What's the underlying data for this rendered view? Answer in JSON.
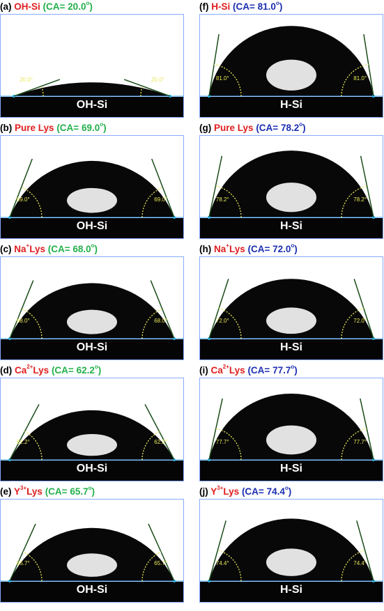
{
  "panels": [
    {
      "letter": "(a)",
      "sample": "OH-Si",
      "sample_sup": "",
      "sample_suffix": "",
      "ca_text": "(CA= 20.0",
      "ca_deg": "o",
      "ca_close": ")",
      "ca_color": "green",
      "angle_label": "20.0°",
      "substrate": "OH-Si",
      "contact_angle_deg": 20.0
    },
    {
      "letter": "(b)",
      "sample": "Pure Lys",
      "sample_sup": "",
      "sample_suffix": "",
      "ca_text": "(CA= 69.0",
      "ca_deg": "o",
      "ca_close": ")",
      "ca_color": "green",
      "angle_label": "69.0°",
      "substrate": "OH-Si",
      "contact_angle_deg": 69.0
    },
    {
      "letter": "(c)",
      "sample": "Na",
      "sample_sup": "+",
      "sample_suffix": "Lys",
      "ca_text": "(CA= 68.0",
      "ca_deg": "o",
      "ca_close": ")",
      "ca_color": "green",
      "angle_label": "68.0°",
      "substrate": "OH-Si",
      "contact_angle_deg": 68.0
    },
    {
      "letter": "(d)",
      "sample": "Ca",
      "sample_sup": "2+",
      "sample_suffix": "Lys",
      "ca_text": "(CA= 62.2",
      "ca_deg": "o",
      "ca_close": ")",
      "ca_color": "green",
      "angle_label": "62.2°",
      "substrate": "OH-Si",
      "contact_angle_deg": 62.2
    },
    {
      "letter": "(e)",
      "sample": "Y",
      "sample_sup": "3+",
      "sample_suffix": "Lys",
      "ca_text": "(CA= 65.7",
      "ca_deg": "o",
      "ca_close": ")",
      "ca_color": "green",
      "angle_label": "65.7°",
      "substrate": "OH-Si",
      "contact_angle_deg": 65.7
    },
    {
      "letter": "(f)",
      "sample": "H-Si",
      "sample_sup": "",
      "sample_suffix": "",
      "ca_text": "(CA= 81.0",
      "ca_deg": "o",
      "ca_close": ")",
      "ca_color": "blue",
      "angle_label": "81.0°",
      "substrate": "H-Si",
      "contact_angle_deg": 81.0
    },
    {
      "letter": "(g)",
      "sample": "Pure Lys",
      "sample_sup": "",
      "sample_suffix": "",
      "ca_text": "(CA= 78.2",
      "ca_deg": "o",
      "ca_close": ")",
      "ca_color": "blue",
      "angle_label": "78.2°",
      "substrate": "H-Si",
      "contact_angle_deg": 78.2
    },
    {
      "letter": "(h)",
      "sample": "Na",
      "sample_sup": "+",
      "sample_suffix": "Lys",
      "ca_text": "(CA= 72.0",
      "ca_deg": "o",
      "ca_close": ")",
      "ca_color": "blue",
      "angle_label": "72.0°",
      "substrate": "H-Si",
      "contact_angle_deg": 72.0
    },
    {
      "letter": "(i)",
      "sample": "Ca",
      "sample_sup": "2+",
      "sample_suffix": "Lys",
      "ca_text": "(CA= 77.7",
      "ca_deg": "o",
      "ca_close": ")",
      "ca_color": "blue",
      "angle_label": "77.7°",
      "substrate": "H-Si",
      "contact_angle_deg": 77.7
    },
    {
      "letter": "(j)",
      "sample": "Y",
      "sample_sup": "3+",
      "sample_suffix": "Lys",
      "ca_text": "(CA= 74.4",
      "ca_deg": "o",
      "ca_close": ")",
      "ca_color": "blue",
      "angle_label": "74.4°",
      "substrate": "H-Si",
      "contact_angle_deg": 74.4
    }
  ],
  "colors": {
    "sample": "#e01e1e",
    "ca_green": "#22b04a",
    "ca_blue": "#1c2fb0",
    "angle_label": "#e8e85a",
    "baseline": "#3aa0ff"
  }
}
